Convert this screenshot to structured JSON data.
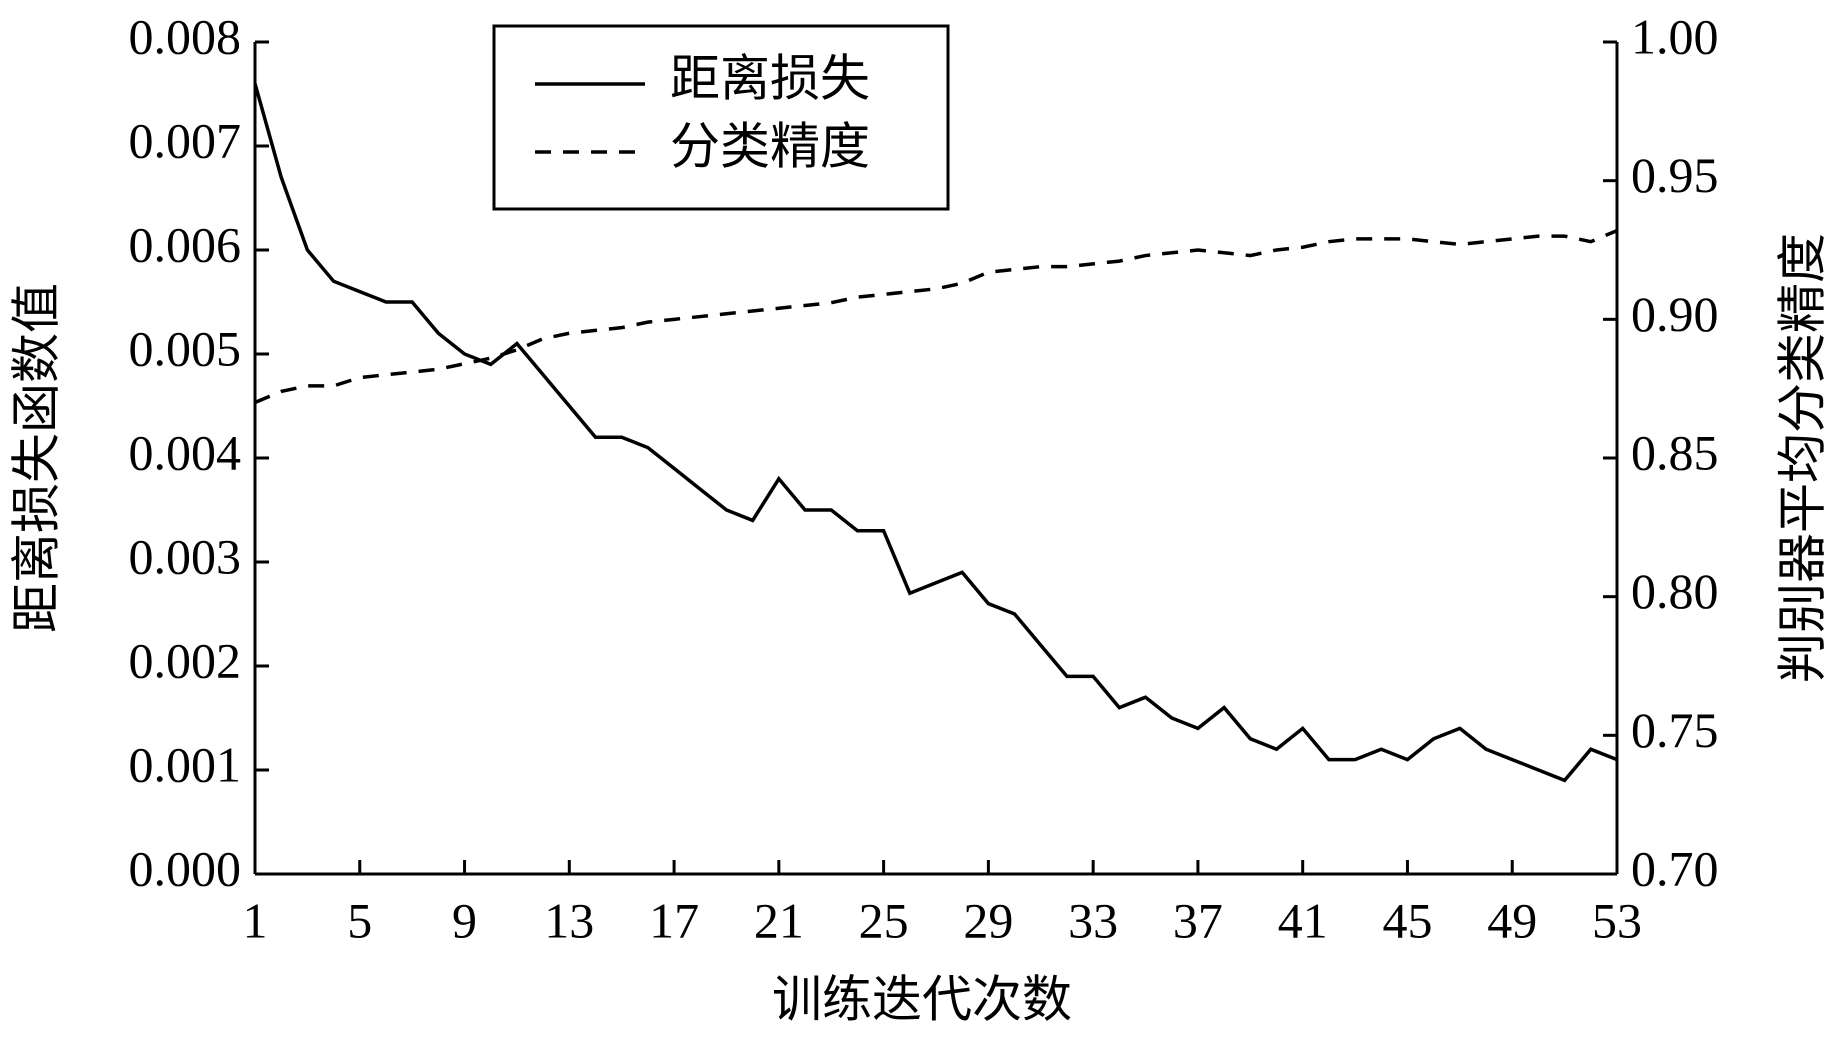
{
  "chart_data": {
    "type": "line",
    "x_label": "训练迭代次数",
    "y_label": "距离损失函数值",
    "y2_label": "判别器平均分类精度",
    "x": [
      1,
      2,
      3,
      4,
      5,
      6,
      7,
      8,
      9,
      10,
      11,
      12,
      13,
      14,
      15,
      16,
      17,
      18,
      19,
      20,
      21,
      22,
      23,
      24,
      25,
      26,
      27,
      28,
      29,
      30,
      31,
      32,
      33,
      34,
      35,
      36,
      37,
      38,
      39,
      40,
      41,
      42,
      43,
      44,
      45,
      46,
      47,
      48,
      49,
      50,
      51,
      52,
      53
    ],
    "series": [
      {
        "name": "距离损失",
        "color": "#000000",
        "line_style": "solid",
        "values": [
          0.0076,
          0.0067,
          0.006,
          0.0057,
          0.0056,
          0.0055,
          0.0055,
          0.0052,
          0.005,
          0.0049,
          0.0051,
          0.0048,
          0.0045,
          0.0042,
          0.0042,
          0.0041,
          0.0039,
          0.0037,
          0.0035,
          0.0034,
          0.0038,
          0.0035,
          0.0035,
          0.0033,
          0.0033,
          0.0027,
          0.0028,
          0.0029,
          0.0026,
          0.0025,
          0.0022,
          0.0019,
          0.0019,
          0.0016,
          0.0017,
          0.0015,
          0.0014,
          0.0016,
          0.0013,
          0.0012,
          0.0014,
          0.0011,
          0.0011,
          0.0012,
          0.0011,
          0.0013,
          0.0014,
          0.0012,
          0.0011,
          0.001,
          0.0009,
          0.0012,
          0.0011
        ]
      },
      {
        "name": "分类精度",
        "color": "#000000",
        "line_style": "dashed",
        "axis": "y2",
        "values": [
          0.87,
          0.874,
          0.876,
          0.876,
          0.879,
          0.88,
          0.881,
          0.882,
          0.884,
          0.886,
          0.889,
          0.893,
          0.895,
          0.896,
          0.897,
          0.899,
          0.9,
          0.901,
          0.902,
          0.903,
          0.904,
          0.905,
          0.906,
          0.908,
          0.909,
          0.91,
          0.911,
          0.913,
          0.917,
          0.918,
          0.919,
          0.919,
          0.92,
          0.921,
          0.923,
          0.924,
          0.925,
          0.924,
          0.923,
          0.925,
          0.926,
          0.928,
          0.929,
          0.929,
          0.929,
          0.928,
          0.927,
          0.928,
          0.929,
          0.93,
          0.93,
          0.928,
          0.932
        ]
      }
    ],
    "xlim": [
      1,
      53
    ],
    "xticks": [
      1,
      5,
      9,
      13,
      17,
      21,
      25,
      29,
      33,
      37,
      41,
      45,
      49,
      53
    ],
    "ylim": [
      0,
      0.008
    ],
    "yticks": [
      {
        "value": 0,
        "label": "0.000"
      },
      0.001,
      0.002,
      0.003,
      0.004,
      0.005,
      0.006,
      0.007,
      0.008
    ],
    "y2lim": [
      0.7,
      1.0
    ],
    "y2ticks": [
      {
        "value": 0.7,
        "label": "0.70"
      },
      0.75,
      {
        "value": 0.8,
        "label": "0.80"
      },
      0.85,
      {
        "value": 0.9,
        "label": "0.90"
      },
      0.95,
      {
        "value": 1.0,
        "label": "1.00"
      }
    ],
    "legend_position": "upper-left"
  }
}
